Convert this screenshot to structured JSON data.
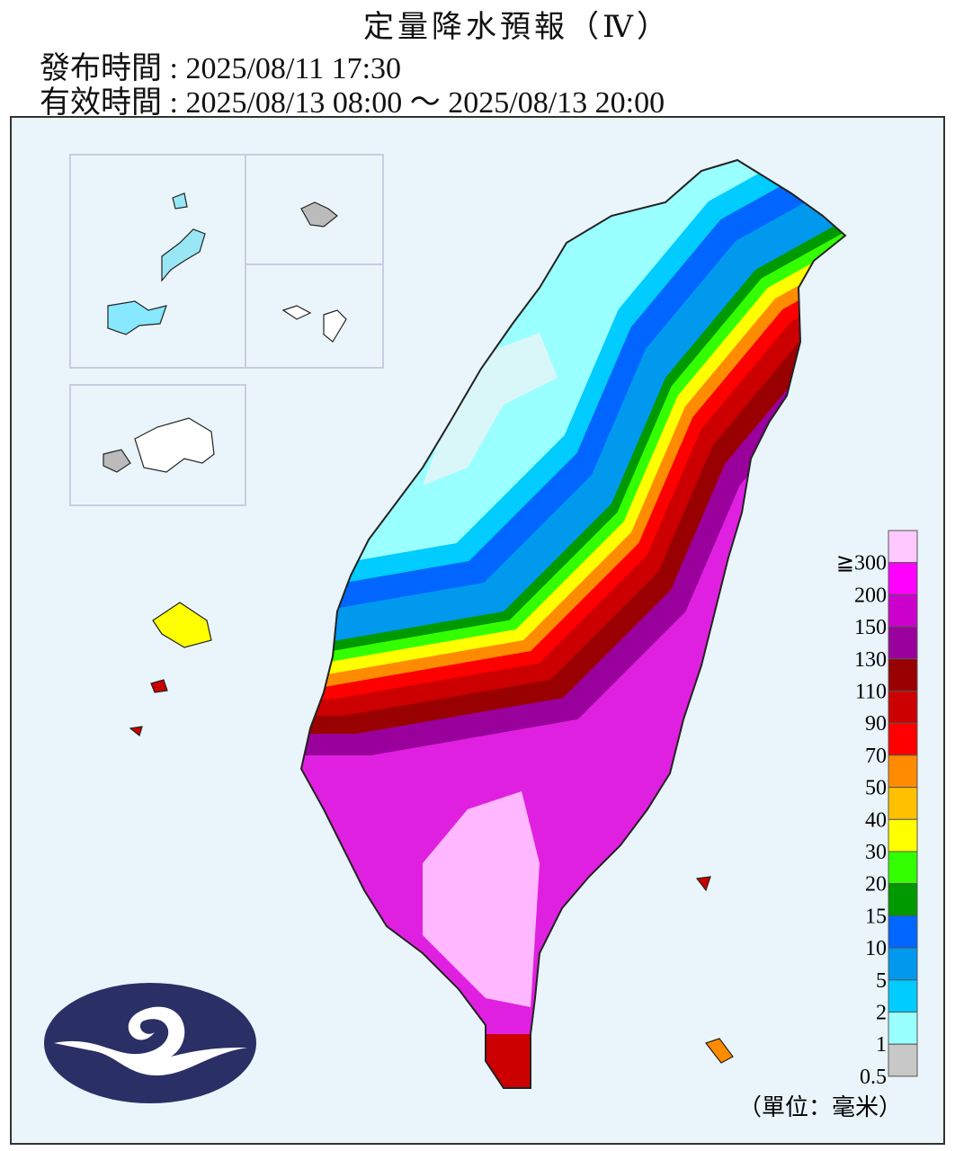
{
  "header": {
    "title": "定量降水預報（Ⅳ）",
    "issued": "發布時間 : 2025/08/11 17:30",
    "valid": "有效時間 : 2025/08/13 08:00 ～ 2025/08/13 20:00"
  },
  "legend": {
    "items": [
      {
        "label": "≧300",
        "color": "#ffc8ff"
      },
      {
        "label": "200",
        "color": "#ff00ff"
      },
      {
        "label": "150",
        "color": "#cc00cc"
      },
      {
        "label": "130",
        "color": "#99009c"
      },
      {
        "label": "110",
        "color": "#990000"
      },
      {
        "label": "90",
        "color": "#cc0000"
      },
      {
        "label": "70",
        "color": "#ff0000"
      },
      {
        "label": "50",
        "color": "#ff8c00"
      },
      {
        "label": "40",
        "color": "#ffc000"
      },
      {
        "label": "30",
        "color": "#ffff00"
      },
      {
        "label": "20",
        "color": "#33ff00"
      },
      {
        "label": "15",
        "color": "#009900"
      },
      {
        "label": "10",
        "color": "#0066ff"
      },
      {
        "label": "5",
        "color": "#0099ee"
      },
      {
        "label": "2",
        "color": "#00ccff"
      },
      {
        "label": "1",
        "color": "#99ffff"
      },
      {
        "label": "0.5",
        "color": "#c8c8c8"
      }
    ]
  },
  "unit": "（單位：毫米）"
}
